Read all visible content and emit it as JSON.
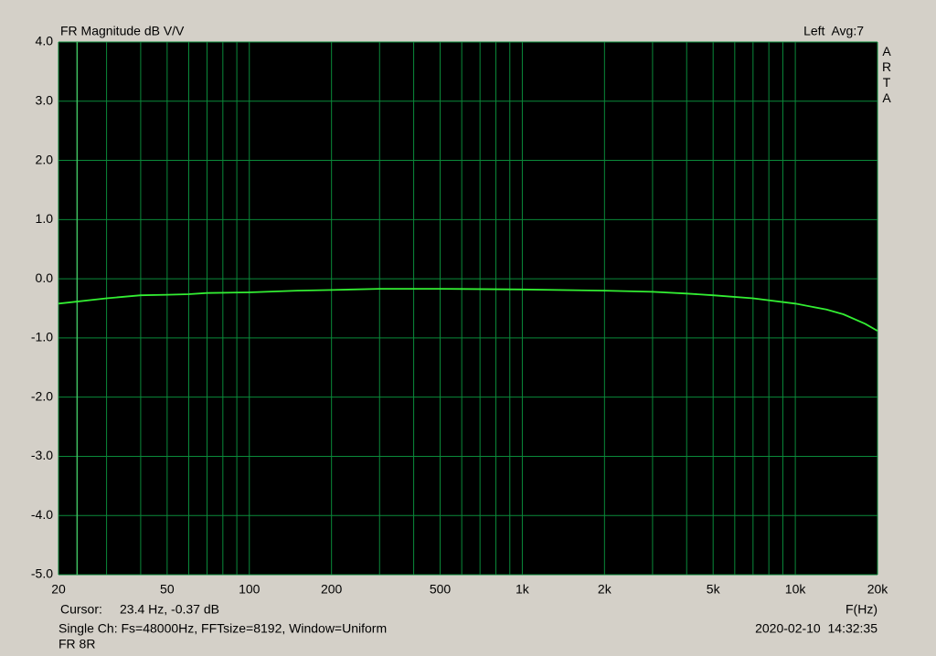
{
  "chart_data": {
    "type": "line",
    "title": "FR Magnitude dB V/V",
    "channel_info": "Left  Avg:7",
    "brand": "ARTA",
    "x_label": "F(Hz)",
    "cursor_label": "Cursor:",
    "cursor": {
      "x": 23.4,
      "label": "23.4 Hz, -0.37 dB"
    },
    "footer": "Single Ch: Fs=48000Hz, FFTsize=8192, Window=Uniform",
    "subfooter": "FR 8R",
    "timestamp": "2020-02-10  14:32:35",
    "xscale": "log",
    "grid": true,
    "xlim": [
      20,
      20000
    ],
    "ylim": [
      -5,
      4
    ],
    "xticks": [
      20,
      50,
      100,
      200,
      500,
      {
        "value": 1000,
        "label": "1k"
      },
      {
        "value": 2000,
        "label": "2k"
      },
      {
        "value": 5000,
        "label": "5k"
      },
      {
        "value": 10000,
        "label": "10k"
      },
      {
        "value": 20000,
        "label": "20k"
      }
    ],
    "xminor": [
      30,
      40,
      60,
      70,
      80,
      90,
      300,
      400,
      600,
      700,
      800,
      900,
      3000,
      4000,
      6000,
      7000,
      8000,
      9000
    ],
    "yticks": [
      {
        "value": 4,
        "label": "4.0"
      },
      {
        "value": 3,
        "label": "3.0"
      },
      {
        "value": 2,
        "label": "2.0"
      },
      {
        "value": 1,
        "label": "1.0"
      },
      {
        "value": 0,
        "label": "0.0"
      },
      {
        "value": -1,
        "label": "-1.0"
      },
      {
        "value": -2,
        "label": "-2.0"
      },
      {
        "value": -3,
        "label": "-3.0"
      },
      {
        "value": -4,
        "label": "-4.0"
      },
      {
        "value": -5,
        "label": "-5.0"
      }
    ],
    "series": [
      {
        "color": "#33ee33",
        "x": [
          20,
          30,
          40,
          50,
          60,
          70,
          100,
          150,
          200,
          300,
          500,
          1000,
          2000,
          3000,
          4000,
          5000,
          7000,
          10000,
          13000,
          15000,
          18000,
          20000
        ],
        "values": [
          -0.42,
          -0.33,
          -0.28,
          -0.27,
          -0.26,
          -0.24,
          -0.23,
          -0.2,
          -0.19,
          -0.17,
          -0.17,
          -0.18,
          -0.2,
          -0.22,
          -0.25,
          -0.28,
          -0.33,
          -0.42,
          -0.52,
          -0.6,
          -0.76,
          -0.88
        ]
      }
    ]
  }
}
